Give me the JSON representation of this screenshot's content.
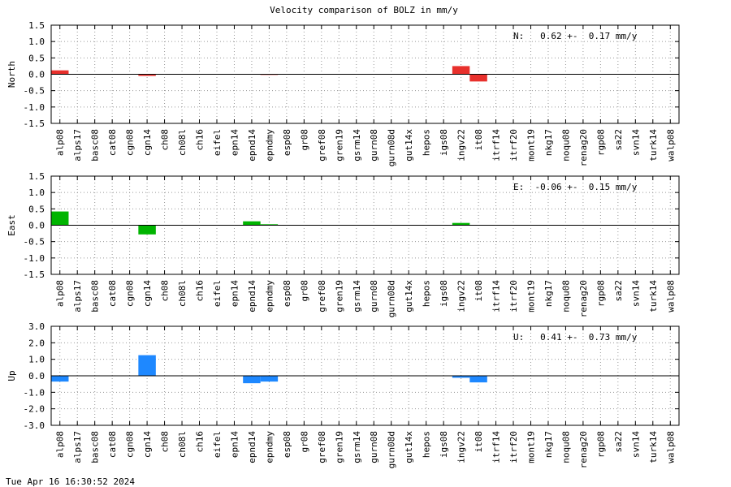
{
  "title": "Velocity comparison of BOLZ in mm/y",
  "footer": "Tue Apr 16 16:30:52 2024",
  "chart_data": [
    {
      "type": "bar",
      "y_label": "North",
      "annotation": "N:   0.62 +-  0.17 mm/y",
      "color": "#e8302c",
      "categories": [
        "alp08",
        "alps17",
        "basc08",
        "cat08",
        "cgn08",
        "cgn14",
        "ch08",
        "ch08l",
        "ch16",
        "eifel",
        "epn14",
        "epnd14",
        "epndmy",
        "esp08",
        "gr08",
        "gref08",
        "gren19",
        "gsrm14",
        "gurn08",
        "gurn08d",
        "gut14x",
        "hepos",
        "igs08",
        "ingv22",
        "it08",
        "itrf14",
        "itrf20",
        "mont19",
        "nkg17",
        "noqu08",
        "renag20",
        "rgp08",
        "sa22",
        "svn14",
        "turk14",
        "walp08"
      ],
      "values": [
        0.12,
        0,
        0,
        0,
        0,
        -0.05,
        0,
        0,
        0,
        0,
        0,
        0,
        -0.02,
        0,
        0,
        0,
        0,
        0,
        0,
        0,
        0,
        0,
        0,
        0.25,
        -0.22,
        0,
        0,
        0,
        0,
        0,
        0,
        0,
        0,
        0,
        0,
        0
      ],
      "ylim": [
        -1.5,
        1.5
      ],
      "yticks": [
        -1.5,
        {
          "value": -1,
          "label": "-1.0"
        },
        -0.5,
        {
          "value": 0,
          "label": "0.0"
        },
        0.5,
        {
          "value": 1,
          "label": "1.0"
        },
        1.5
      ],
      "grid": true
    },
    {
      "type": "bar",
      "y_label": "East",
      "annotation": "E:  -0.06 +-  0.15 mm/y",
      "color": "#00b400",
      "categories": [
        "alp08",
        "alps17",
        "basc08",
        "cat08",
        "cgn08",
        "cgn14",
        "ch08",
        "ch08l",
        "ch16",
        "eifel",
        "epn14",
        "epnd14",
        "epndmy",
        "esp08",
        "gr08",
        "gref08",
        "gren19",
        "gsrm14",
        "gurn08",
        "gurn08d",
        "gut14x",
        "hepos",
        "igs08",
        "ingv22",
        "it08",
        "itrf14",
        "itrf20",
        "mont19",
        "nkg17",
        "noqu08",
        "renag20",
        "rgp08",
        "sa22",
        "svn14",
        "turk14",
        "walp08"
      ],
      "values": [
        0.42,
        0,
        0,
        0,
        0,
        -0.28,
        0,
        0,
        0,
        0,
        0,
        0.12,
        0.03,
        0,
        0,
        0,
        0,
        0,
        0,
        0,
        0,
        0,
        0,
        0.07,
        0,
        0,
        0,
        0,
        0,
        0,
        0,
        0,
        0,
        0,
        0,
        0
      ],
      "ylim": [
        -1.5,
        1.5
      ],
      "yticks": [
        -1.5,
        {
          "value": -1,
          "label": "-1.0"
        },
        -0.5,
        {
          "value": 0,
          "label": "0.0"
        },
        0.5,
        {
          "value": 1,
          "label": "1.0"
        },
        1.5
      ],
      "grid": true
    },
    {
      "type": "bar",
      "y_label": "Up",
      "annotation": "U:   0.41 +-  0.73 mm/y",
      "color": "#1e88ff",
      "categories": [
        "alp08",
        "alps17",
        "basc08",
        "cat08",
        "cgn08",
        "cgn14",
        "ch08",
        "ch08l",
        "ch16",
        "eifel",
        "epn14",
        "epnd14",
        "epndmy",
        "esp08",
        "gr08",
        "gref08",
        "gren19",
        "gsrm14",
        "gurn08",
        "gurn08d",
        "gut14x",
        "hepos",
        "igs08",
        "ingv22",
        "it08",
        "itrf14",
        "itrf20",
        "mont19",
        "nkg17",
        "noqu08",
        "renag20",
        "rgp08",
        "sa22",
        "svn14",
        "turk14",
        "walp08"
      ],
      "values": [
        -0.35,
        0,
        0,
        0,
        0,
        1.25,
        0,
        0,
        0,
        0,
        0,
        -0.45,
        -0.35,
        0,
        0,
        0,
        0,
        0,
        0,
        0,
        0,
        0,
        0,
        -0.12,
        -0.4,
        0,
        0,
        0,
        0,
        0,
        0,
        0,
        0,
        0,
        0,
        0
      ],
      "ylim": [
        -3,
        3
      ],
      "yticks": [
        {
          "value": -3,
          "label": "-3.0"
        },
        {
          "value": -2,
          "label": "-2.0"
        },
        {
          "value": -1,
          "label": "-1.0"
        },
        {
          "value": 0,
          "label": "0.0"
        },
        {
          "value": 1,
          "label": "1.0"
        },
        {
          "value": 2,
          "label": "2.0"
        },
        {
          "value": 3,
          "label": "3.0"
        }
      ],
      "grid": true
    }
  ]
}
